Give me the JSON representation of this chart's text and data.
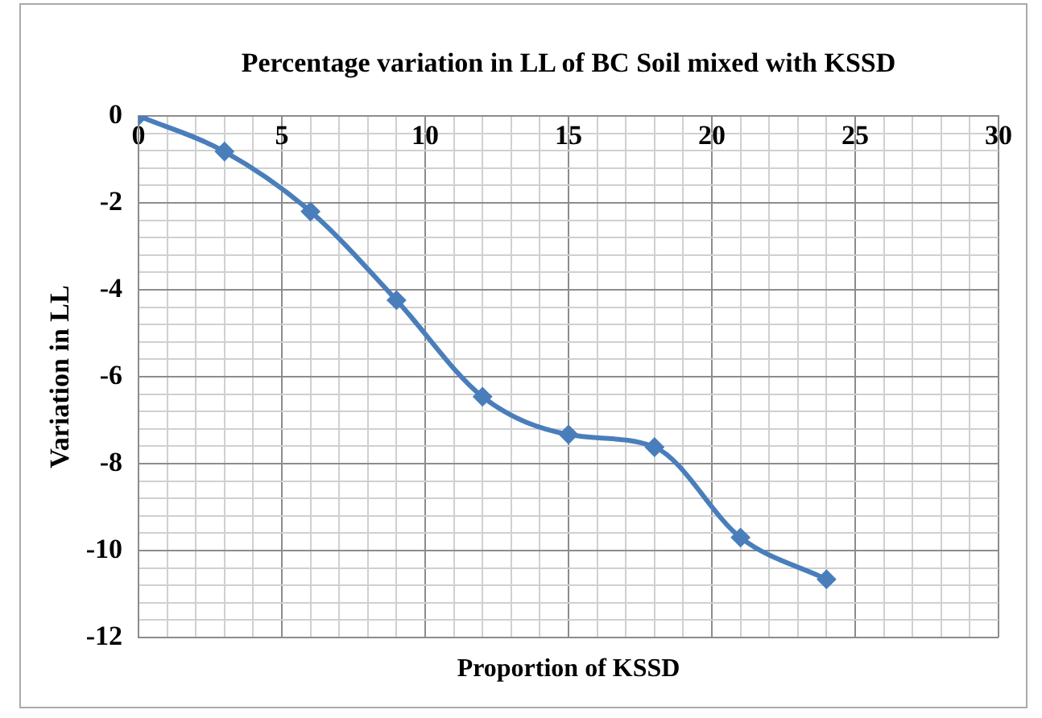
{
  "chart_data": {
    "type": "line",
    "title": "Percentage variation in LL of BC Soil mixed with KSSD",
    "xlabel": "Proportion of KSSD",
    "ylabel": "Variation in LL",
    "x": [
      0,
      3,
      6,
      9,
      12,
      15,
      18,
      21,
      24
    ],
    "series": [
      {
        "color": "#4a7ebb",
        "values": [
          0,
          -0.82,
          -2.2,
          -4.24,
          -6.46,
          -7.33,
          -7.62,
          -9.7,
          -10.66
        ]
      }
    ],
    "xlim": [
      0,
      30
    ],
    "xticks": [
      0,
      {
        "value": 1,
        "label": null
      },
      {
        "value": 2,
        "label": null
      },
      {
        "value": 3,
        "label": null
      },
      {
        "value": 4,
        "label": null
      },
      5,
      {
        "value": 6,
        "label": null
      },
      {
        "value": 7,
        "label": null
      },
      {
        "value": 8,
        "label": null
      },
      {
        "value": 9,
        "label": null
      },
      10,
      {
        "value": 11,
        "label": null
      },
      {
        "value": 12,
        "label": null
      },
      {
        "value": 13,
        "label": null
      },
      {
        "value": 14,
        "label": null
      },
      15,
      {
        "value": 16,
        "label": null
      },
      {
        "value": 17,
        "label": null
      },
      {
        "value": 18,
        "label": null
      },
      {
        "value": 19,
        "label": null
      },
      20,
      {
        "value": 21,
        "label": null
      },
      {
        "value": 22,
        "label": null
      },
      {
        "value": 23,
        "label": null
      },
      {
        "value": 24,
        "label": null
      },
      25,
      {
        "value": 26,
        "label": null
      },
      {
        "value": 27,
        "label": null
      },
      {
        "value": 28,
        "label": null
      },
      {
        "value": 29,
        "label": null
      },
      30
    ],
    "ylim": [
      -12,
      0
    ],
    "yticks": [
      -12,
      {
        "value": -11.6,
        "label": null
      },
      {
        "value": -11.2,
        "label": null
      },
      {
        "value": -10.8,
        "label": null
      },
      {
        "value": -10.4,
        "label": null
      },
      -10,
      {
        "value": -9.6,
        "label": null
      },
      {
        "value": -9.2,
        "label": null
      },
      {
        "value": -8.8,
        "label": null
      },
      {
        "value": -8.4,
        "label": null
      },
      -8,
      {
        "value": -7.6,
        "label": null
      },
      {
        "value": -7.2,
        "label": null
      },
      {
        "value": -6.8,
        "label": null
      },
      {
        "value": -6.4,
        "label": null
      },
      -6,
      {
        "value": -5.6,
        "label": null
      },
      {
        "value": -5.2,
        "label": null
      },
      {
        "value": -4.8,
        "label": null
      },
      {
        "value": -4.4,
        "label": null
      },
      -4,
      {
        "value": -3.6,
        "label": null
      },
      {
        "value": -3.2,
        "label": null
      },
      {
        "value": -2.8,
        "label": null
      },
      {
        "value": -2.4,
        "label": null
      },
      -2,
      {
        "value": -1.6,
        "label": null
      },
      {
        "value": -1.2,
        "label": null
      },
      {
        "value": -0.8,
        "label": null
      },
      {
        "value": -0.4,
        "label": null
      },
      0
    ],
    "grid": true,
    "marker": "diamond",
    "line_style": "solid",
    "legend": false
  }
}
